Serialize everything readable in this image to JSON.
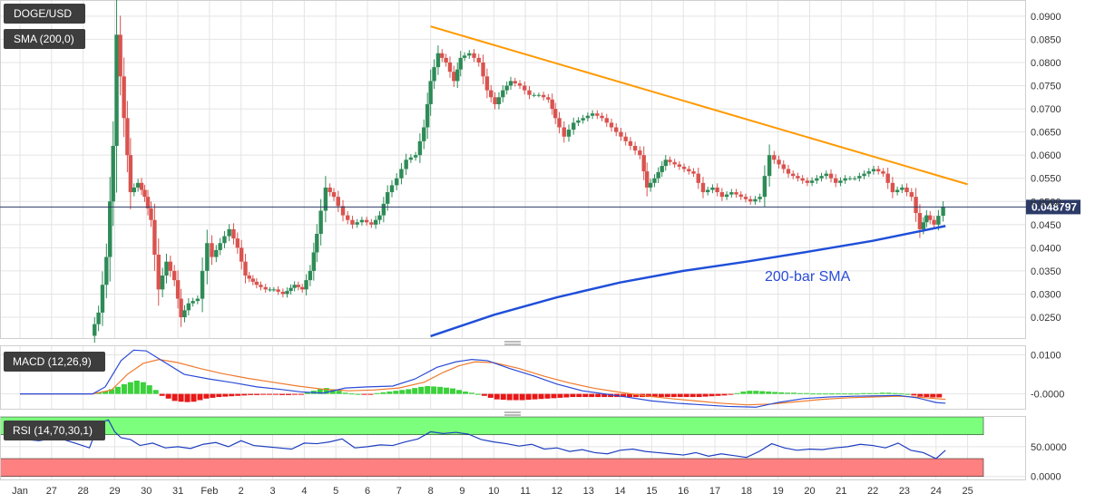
{
  "colors": {
    "up": "#2e8b57",
    "down": "#d9534f",
    "trendline": "#ff9900",
    "sma": "#1f4fd8",
    "macd_line": "#2a4bd7",
    "signal_line": "#f07a2c",
    "hist_pos": "#3ad13a",
    "hist_neg": "#e81818",
    "rsi_line": "#1f3fbf",
    "rsi_overbought_fill": "#7cff7c",
    "rsi_oversold_fill": "#ff8080"
  },
  "panels": {
    "price": {
      "symbol": "DOGE/USD",
      "indicator": "SMA (200,0)",
      "annotation": "200-bar SMA",
      "current_price": "0.048797"
    },
    "macd": {
      "label": "MACD (12,26,9)"
    },
    "rsi": {
      "label": "RSI (14,70,30,1)"
    }
  },
  "chart_data": [
    {
      "type": "candlestick",
      "title": "DOGE/USD",
      "ylim": [
        0.0205,
        0.0935
      ],
      "y_ticks": [
        "0.0900",
        "0.0850",
        "0.0800",
        "0.0750",
        "0.0700",
        "0.0650",
        "0.0600",
        "0.0550",
        "0.0500",
        "0.0450",
        "0.0400",
        "0.0350",
        "0.0300",
        "0.0250"
      ],
      "x_ticks": [
        "Jan",
        "27",
        "28",
        "29",
        "30",
        "31",
        "Feb",
        "2",
        "3",
        "4",
        "5",
        "6",
        "7",
        "8",
        "9",
        "10",
        "11",
        "12",
        "13",
        "14",
        "15",
        "16",
        "17",
        "18",
        "19",
        "20",
        "21",
        "22",
        "23",
        "24",
        "25"
      ],
      "x_range": [
        0,
        30.5
      ],
      "close_path": [
        [
          2.3,
          0.021
        ],
        [
          2.55,
          0.026
        ],
        [
          2.8,
          0.038
        ],
        [
          3.0,
          0.062
        ],
        [
          3.12,
          0.086
        ],
        [
          3.35,
          0.068
        ],
        [
          3.55,
          0.052
        ],
        [
          3.8,
          0.054
        ],
        [
          4.0,
          0.051
        ],
        [
          4.2,
          0.046
        ],
        [
          4.45,
          0.031
        ],
        [
          4.7,
          0.037
        ],
        [
          4.95,
          0.033
        ],
        [
          5.15,
          0.025
        ],
        [
          5.4,
          0.028
        ],
        [
          5.7,
          0.029
        ],
        [
          6.0,
          0.041
        ],
        [
          6.15,
          0.038
        ],
        [
          6.4,
          0.041
        ],
        [
          6.7,
          0.044
        ],
        [
          6.95,
          0.04
        ],
        [
          7.2,
          0.034
        ],
        [
          7.55,
          0.032
        ],
        [
          7.85,
          0.031
        ],
        [
          8.1,
          0.031
        ],
        [
          8.4,
          0.03
        ],
        [
          8.75,
          0.032
        ],
        [
          9.0,
          0.031
        ],
        [
          9.25,
          0.035
        ],
        [
          9.45,
          0.043
        ],
        [
          9.75,
          0.053
        ],
        [
          10.0,
          0.051
        ],
        [
          10.3,
          0.047
        ],
        [
          10.6,
          0.045
        ],
        [
          10.9,
          0.046
        ],
        [
          11.2,
          0.045
        ],
        [
          11.45,
          0.047
        ],
        [
          11.7,
          0.052
        ],
        [
          12.0,
          0.055
        ],
        [
          12.3,
          0.059
        ],
        [
          12.6,
          0.06
        ],
        [
          12.85,
          0.066
        ],
        [
          13.05,
          0.076
        ],
        [
          13.3,
          0.082
        ],
        [
          13.55,
          0.08
        ],
        [
          13.8,
          0.076
        ],
        [
          14.0,
          0.081
        ],
        [
          14.3,
          0.082
        ],
        [
          14.6,
          0.08
        ],
        [
          14.85,
          0.074
        ],
        [
          15.1,
          0.071
        ],
        [
          15.35,
          0.074
        ],
        [
          15.6,
          0.076
        ],
        [
          15.9,
          0.075
        ],
        [
          16.2,
          0.073
        ],
        [
          16.5,
          0.073
        ],
        [
          16.8,
          0.072
        ],
        [
          17.0,
          0.068
        ],
        [
          17.3,
          0.064
        ],
        [
          17.6,
          0.067
        ],
        [
          17.9,
          0.068
        ],
        [
          18.2,
          0.069
        ],
        [
          18.5,
          0.068
        ],
        [
          18.8,
          0.066
        ],
        [
          19.1,
          0.064
        ],
        [
          19.4,
          0.062
        ],
        [
          19.7,
          0.06
        ],
        [
          19.9,
          0.053
        ],
        [
          20.15,
          0.055
        ],
        [
          20.5,
          0.059
        ],
        [
          20.8,
          0.058
        ],
        [
          21.1,
          0.057
        ],
        [
          21.4,
          0.056
        ],
        [
          21.7,
          0.052
        ],
        [
          22.0,
          0.053
        ],
        [
          22.3,
          0.051
        ],
        [
          22.6,
          0.052
        ],
        [
          22.9,
          0.051
        ],
        [
          23.2,
          0.05
        ],
        [
          23.5,
          0.051
        ],
        [
          23.8,
          0.06
        ],
        [
          24.1,
          0.058
        ],
        [
          24.4,
          0.056
        ],
        [
          24.7,
          0.055
        ],
        [
          25.0,
          0.054
        ],
        [
          25.3,
          0.055
        ],
        [
          25.6,
          0.056
        ],
        [
          25.9,
          0.054
        ],
        [
          26.2,
          0.055
        ],
        [
          26.5,
          0.055
        ],
        [
          26.8,
          0.056
        ],
        [
          27.1,
          0.057
        ],
        [
          27.4,
          0.056
        ],
        [
          27.7,
          0.052
        ],
        [
          28.0,
          0.053
        ],
        [
          28.3,
          0.051
        ],
        [
          28.55,
          0.044
        ],
        [
          28.75,
          0.047
        ],
        [
          29.0,
          0.045
        ],
        [
          29.3,
          0.048797
        ]
      ],
      "resistance_line": [
        [
          13.0,
          0.0878
        ],
        [
          30.0,
          0.0537
        ]
      ],
      "sma_200": [
        [
          13.0,
          0.0209
        ],
        [
          15.0,
          0.0255
        ],
        [
          17.0,
          0.0293
        ],
        [
          19.0,
          0.0325
        ],
        [
          21.0,
          0.035
        ],
        [
          23.0,
          0.037
        ],
        [
          25.0,
          0.0392
        ],
        [
          27.0,
          0.0415
        ],
        [
          29.3,
          0.0447
        ]
      ]
    },
    {
      "type": "line",
      "title": "MACD (12,26,9)",
      "ylim": [
        -0.0038,
        0.0122
      ],
      "y_ticks": [
        "0.0100",
        "-0.0000"
      ],
      "series": [
        {
          "name": "MACD",
          "x": [
            0,
            2.3,
            2.7,
            3.2,
            3.6,
            4.0,
            4.5,
            5.2,
            6.0,
            6.8,
            7.5,
            8.2,
            8.9,
            9.6,
            10.3,
            11.0,
            11.8,
            12.5,
            13.2,
            13.8,
            14.3,
            14.8,
            15.5,
            16.3,
            17.0,
            17.8,
            18.5,
            19.2,
            20.0,
            20.8,
            21.6,
            22.4,
            23.3,
            24.0,
            24.8,
            25.6,
            26.4,
            27.2,
            27.8,
            28.4,
            29.0,
            29.3
          ],
          "values": [
            0,
            0,
            0.0018,
            0.0085,
            0.0112,
            0.011,
            0.0085,
            0.005,
            0.0038,
            0.0028,
            0.0018,
            0.0012,
            0.0005,
            0.0002,
            0.0015,
            0.0018,
            0.002,
            0.0038,
            0.0068,
            0.0082,
            0.0088,
            0.0085,
            0.0065,
            0.0045,
            0.0025,
            0.0008,
            0.0,
            -0.0008,
            -0.0018,
            -0.0024,
            -0.0028,
            -0.0032,
            -0.0034,
            -0.0022,
            -0.0012,
            -0.0008,
            -0.0006,
            -0.0005,
            -0.0004,
            -0.001,
            -0.0022,
            -0.0024
          ]
        },
        {
          "name": "Signal",
          "x": [
            0,
            2.3,
            2.9,
            3.4,
            3.9,
            4.4,
            5.0,
            5.7,
            6.4,
            7.2,
            8.0,
            8.8,
            9.6,
            10.4,
            11.2,
            12.0,
            12.8,
            13.4,
            13.9,
            14.4,
            15.0,
            15.8,
            16.6,
            17.4,
            18.2,
            19.0,
            19.8,
            20.6,
            21.4,
            22.2,
            23.0,
            23.8,
            24.6,
            25.4,
            26.2,
            27.0,
            27.8,
            28.4,
            29.0,
            29.3
          ],
          "values": [
            0,
            0,
            0.001,
            0.005,
            0.0078,
            0.0088,
            0.008,
            0.0065,
            0.0052,
            0.004,
            0.003,
            0.002,
            0.0012,
            0.0008,
            0.001,
            0.0015,
            0.003,
            0.0055,
            0.0072,
            0.0082,
            0.008,
            0.0065,
            0.0045,
            0.0028,
            0.0014,
            0.0004,
            -0.0005,
            -0.0012,
            -0.0018,
            -0.0024,
            -0.0028,
            -0.0026,
            -0.002,
            -0.0014,
            -0.001,
            -0.0008,
            -0.0006,
            -0.0008,
            -0.0012,
            -0.0014
          ]
        },
        {
          "name": "Histogram",
          "x": [
            2.5,
            2.7,
            2.9,
            3.1,
            3.3,
            3.5,
            3.7,
            3.9,
            4.1,
            4.3,
            4.5,
            4.7,
            4.9,
            5.1,
            5.3,
            5.5,
            5.7,
            5.9,
            6.1,
            6.3,
            6.5,
            6.7,
            6.9,
            7.1,
            7.3,
            7.5,
            7.7,
            7.9,
            8.1,
            8.3,
            8.5,
            8.7,
            8.9,
            9.1,
            9.3,
            9.5,
            9.7,
            9.9,
            10.1,
            10.3,
            10.5,
            10.7,
            10.9,
            11.1,
            11.3,
            11.5,
            11.7,
            11.9,
            12.1,
            12.3,
            12.5,
            12.7,
            12.9,
            13.1,
            13.3,
            13.5,
            13.7,
            13.9,
            14.1,
            14.3,
            14.5,
            14.7,
            14.9,
            15.1,
            15.3,
            15.5,
            15.7,
            15.9,
            16.1,
            16.3,
            16.5,
            16.7,
            16.9,
            17.1,
            17.3,
            17.5,
            17.7,
            17.9,
            18.1,
            18.3,
            18.5,
            18.7,
            18.9,
            19.1,
            19.3,
            19.5,
            19.7,
            19.9,
            20.1,
            20.3,
            20.5,
            20.7,
            20.9,
            21.1,
            21.3,
            21.5,
            21.7,
            21.9,
            22.1,
            22.3,
            22.5,
            22.7,
            22.9,
            23.1,
            23.3,
            23.5,
            23.7,
            23.9,
            24.1,
            24.3,
            24.5,
            24.7,
            24.9,
            25.1,
            25.3,
            25.5,
            25.7,
            25.9,
            26.1,
            26.3,
            26.5,
            26.7,
            26.9,
            27.1,
            27.3,
            27.5,
            27.7,
            27.9,
            28.1,
            28.3,
            28.5,
            28.7,
            28.9,
            29.1
          ],
          "values": [
            0.0004,
            0.0007,
            0.0012,
            0.0018,
            0.0025,
            0.003,
            0.0034,
            0.003,
            0.0022,
            0.001,
            -0.0005,
            -0.0012,
            -0.0018,
            -0.002,
            -0.0021,
            -0.002,
            -0.0016,
            -0.0012,
            -0.001,
            -0.0008,
            -0.0007,
            -0.0006,
            -0.0005,
            -0.0004,
            -0.0003,
            -0.0003,
            -0.0002,
            -0.0002,
            -0.0002,
            -0.0003,
            -0.0003,
            -0.0002,
            -0.0001,
            0.0004,
            0.0008,
            0.0012,
            0.0015,
            0.0012,
            0.0008,
            0.0003,
            0.0001,
            0.0,
            -0.0001,
            -0.0001,
            0.0002,
            0.0004,
            0.0006,
            0.0008,
            0.001,
            0.0012,
            0.0015,
            0.0018,
            0.002,
            0.0019,
            0.0018,
            0.0016,
            0.0014,
            0.001,
            0.0006,
            0.0003,
            0.0,
            -0.0005,
            -0.001,
            -0.0014,
            -0.0015,
            -0.0016,
            -0.0016,
            -0.0016,
            -0.0015,
            -0.0014,
            -0.0013,
            -0.0012,
            -0.0011,
            -0.001,
            -0.0009,
            -0.0008,
            -0.0008,
            -0.0008,
            -0.0008,
            -0.0008,
            -0.0008,
            -0.0008,
            -0.0008,
            -0.0008,
            -0.0008,
            -0.0008,
            -0.0008,
            -0.0008,
            -0.0008,
            -0.0008,
            -0.0008,
            -0.0008,
            -0.0008,
            -0.0008,
            -0.0008,
            -0.0008,
            -0.0007,
            -0.0006,
            -0.0005,
            -0.0004,
            -0.0002,
            0.0002,
            0.0006,
            0.0008,
            0.0008,
            0.0007,
            0.0006,
            0.0005,
            0.0004,
            0.0003,
            0.0003,
            0.0002,
            0.0002,
            0.0001,
            0.0001,
            0.0001,
            0.0001,
            0.0001,
            0.0001,
            0.0001,
            0.0001,
            0.0002,
            0.0002,
            0.0002,
            0.0003,
            0.0003,
            0.0002,
            0.0001,
            0.0,
            -0.0004,
            -0.0007,
            -0.0008,
            -0.0009,
            -0.0009
          ]
        }
      ]
    },
    {
      "type": "line",
      "title": "RSI (14,70,30,1)",
      "ylim": [
        -5,
        100
      ],
      "y_ticks": [
        "50.0000",
        "0.0000"
      ],
      "bands": {
        "overbought": [
          70,
          100
        ],
        "oversold": [
          0,
          30
        ]
      },
      "series": [
        {
          "name": "RSI",
          "x": [
            0,
            0.6,
            1.2,
            1.8,
            2.2,
            2.5,
            2.8,
            3.0,
            3.2,
            3.5,
            3.8,
            4.2,
            4.6,
            5.0,
            5.4,
            5.8,
            6.2,
            6.6,
            7.0,
            7.4,
            7.8,
            8.2,
            8.6,
            9.0,
            9.4,
            9.8,
            10.2,
            10.6,
            11.0,
            11.4,
            11.8,
            12.2,
            12.6,
            13.0,
            13.4,
            13.8,
            14.2,
            14.6,
            15.0,
            15.4,
            15.8,
            16.2,
            16.6,
            17.0,
            17.4,
            17.8,
            18.2,
            18.6,
            19.0,
            19.4,
            19.8,
            20.2,
            20.6,
            21.0,
            21.4,
            21.8,
            22.2,
            22.6,
            23.0,
            23.4,
            23.8,
            24.2,
            24.6,
            25.0,
            25.4,
            25.8,
            26.2,
            26.6,
            27.0,
            27.4,
            27.8,
            28.2,
            28.6,
            29.0,
            29.3
          ],
          "values": [
            63,
            60,
            65,
            55,
            48,
            90,
            95,
            75,
            65,
            62,
            52,
            56,
            48,
            50,
            47,
            54,
            57,
            50,
            60,
            52,
            50,
            48,
            46,
            56,
            55,
            58,
            63,
            48,
            50,
            53,
            52,
            58,
            63,
            75,
            72,
            74,
            71,
            62,
            58,
            55,
            51,
            54,
            46,
            48,
            42,
            45,
            40,
            38,
            44,
            46,
            42,
            40,
            38,
            36,
            40,
            34,
            38,
            35,
            32,
            42,
            55,
            48,
            44,
            46,
            45,
            48,
            50,
            54,
            52,
            48,
            56,
            44,
            40,
            30,
            44
          ]
        }
      ]
    }
  ]
}
